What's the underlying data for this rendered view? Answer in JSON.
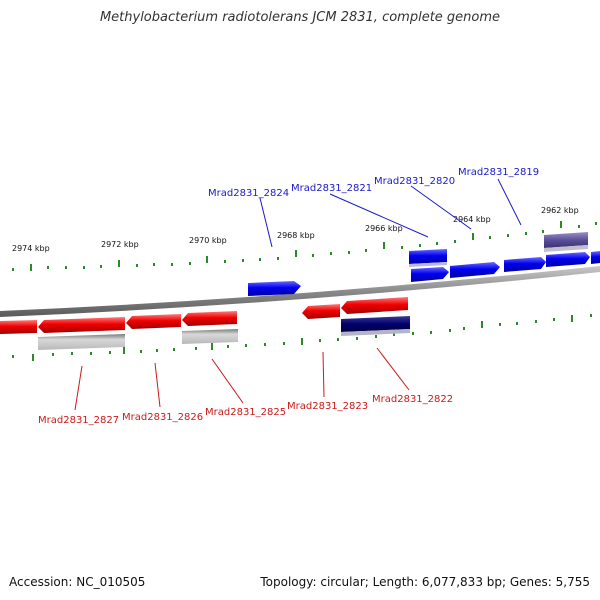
{
  "title": "Methylobacterium radiotolerans JCM 2831, complete genome",
  "footer": {
    "accession": "Accession: NC_010505",
    "summary": "Topology: circular; Length: 6,077,833 bp; Genes: 5,755"
  },
  "colors": {
    "forward_gene": "#0000ee",
    "reverse_gene": "#ee0000",
    "forward_label": "#1a1acc",
    "reverse_label": "#cc1a1a",
    "backbone": "#888888",
    "tick": "#2a8a2a"
  },
  "scale_ticks": [
    "2974 kbp",
    "2972 kbp",
    "2970 kbp",
    "2968 kbp",
    "2966 kbp",
    "2964 kbp",
    "2962 kbp"
  ],
  "forward_labels": [
    "Mrad2831_2824",
    "Mrad2831_2821",
    "Mrad2831_2820",
    "Mrad2831_2819"
  ],
  "reverse_labels": [
    "Mrad2831_2827",
    "Mrad2831_2826",
    "Mrad2831_2825",
    "Mrad2831_2823",
    "Mrad2831_2822"
  ]
}
